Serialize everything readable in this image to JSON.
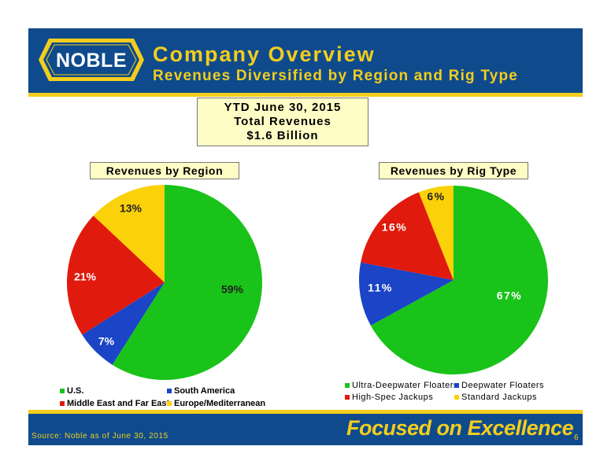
{
  "header": {
    "logo_text": "NOBLE",
    "title": "Company Overview",
    "subtitle": "Revenues Diversified by Region and Rig Type"
  },
  "summary": {
    "line1": "YTD June 30, 2015",
    "line2": "Total Revenues",
    "line3": "$1.6 Billion"
  },
  "colors": {
    "brand_blue": "#0f4b8c",
    "brand_yellow": "#f3cd1e",
    "green": "#19c319",
    "blue": "#1b44c6",
    "red": "#e01a0c",
    "yellow": "#fbd10a"
  },
  "chart_data": [
    {
      "type": "pie",
      "title": "Revenues by Region",
      "legend": "bottom",
      "slices": [
        {
          "label": "U.S.",
          "value": 59,
          "display": "59%",
          "color": "#19c319"
        },
        {
          "label": "South America",
          "value": 7,
          "display": "7%",
          "color": "#1b44c6"
        },
        {
          "label": "Middle East and Far East",
          "value": 21,
          "display": "21%",
          "color": "#e01a0c"
        },
        {
          "label": "Europe/Mediterranean",
          "value": 13,
          "display": "13%",
          "color": "#fbd10a"
        }
      ]
    },
    {
      "type": "pie",
      "title": "Revenues by Rig Type",
      "legend": "bottom",
      "slices": [
        {
          "label": "Ultra-Deepwater Floaters",
          "value": 67,
          "display": "67%",
          "color": "#19c319"
        },
        {
          "label": "Deepwater Floaters",
          "value": 11,
          "display": "11%",
          "color": "#1b44c6"
        },
        {
          "label": "High-Spec Jackups",
          "value": 16,
          "display": "16%",
          "color": "#e01a0c"
        },
        {
          "label": "Standard Jackups",
          "value": 6,
          "display": "6%",
          "color": "#fbd10a"
        }
      ]
    }
  ],
  "footer": {
    "source": "Source: Noble as of June 30, 2015",
    "tagline": "Focused on Excellence",
    "page_number": "6"
  }
}
